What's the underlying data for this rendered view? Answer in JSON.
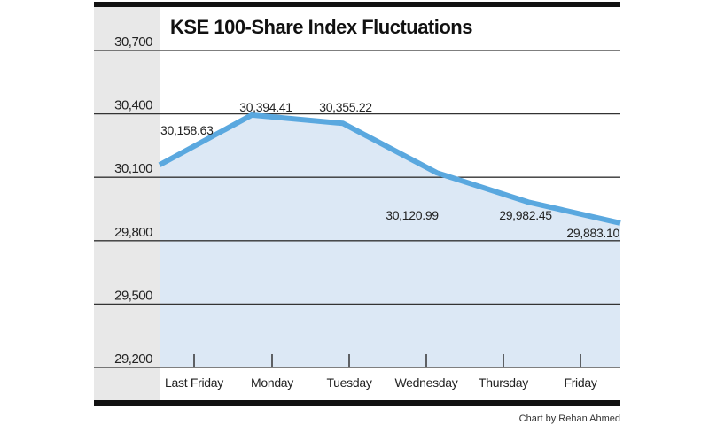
{
  "chart_data": {
    "type": "line",
    "title": "KSE 100-Share Index Fluctuations",
    "xlabel": "",
    "ylabel": "",
    "categories": [
      "Last Friday",
      "Monday",
      "Tuesday",
      "Wednesday",
      "Thursday",
      "Friday"
    ],
    "values": [
      30158.63,
      30394.41,
      30355.22,
      30120.99,
      29982.45,
      29883.1
    ],
    "data_labels": [
      "30,158.63",
      "30,394.41",
      "30,355.22",
      "30,120.99",
      "29,982.45",
      "29,883.10"
    ],
    "yticks": [
      30700,
      30400,
      30100,
      29800,
      29500,
      29200
    ],
    "ytick_labels": [
      "30,700",
      "30,400",
      "30,100",
      "29,800",
      "29,500",
      "29,200"
    ],
    "ylim": [
      29200,
      30700
    ],
    "grid": true,
    "line_color": "#5aa8df",
    "fill_color": "#dce8f5",
    "credit": "Chart by Rehan Ahmed"
  }
}
